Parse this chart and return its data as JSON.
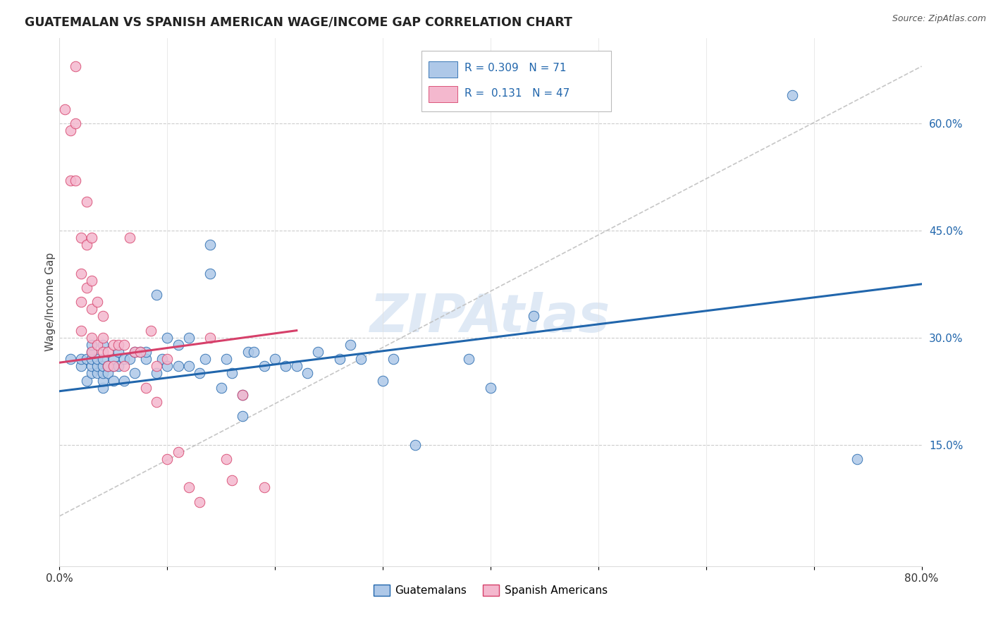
{
  "title": "GUATEMALAN VS SPANISH AMERICAN WAGE/INCOME GAP CORRELATION CHART",
  "source": "Source: ZipAtlas.com",
  "ylabel": "Wage/Income Gap",
  "xlim": [
    0.0,
    0.8
  ],
  "ylim": [
    -0.02,
    0.72
  ],
  "yticks_right": [
    0.15,
    0.3,
    0.45,
    0.6
  ],
  "ytick_right_labels": [
    "15.0%",
    "30.0%",
    "45.0%",
    "60.0%"
  ],
  "blue_color": "#aec8e8",
  "pink_color": "#f4b8ce",
  "blue_line_color": "#2166ac",
  "pink_line_color": "#d6406a",
  "blue_trend_x0": 0.0,
  "blue_trend_y0": 0.225,
  "blue_trend_x1": 0.8,
  "blue_trend_y1": 0.375,
  "pink_trend_x0": 0.0,
  "pink_trend_y0": 0.265,
  "pink_trend_x1": 0.22,
  "pink_trend_y1": 0.31,
  "ref_line_x0": 0.0,
  "ref_line_y0": 0.05,
  "ref_line_x1": 0.8,
  "ref_line_y1": 0.68,
  "watermark": "ZIPAtlas",
  "blue_x": [
    0.01,
    0.02,
    0.02,
    0.025,
    0.025,
    0.03,
    0.03,
    0.03,
    0.03,
    0.03,
    0.035,
    0.035,
    0.035,
    0.04,
    0.04,
    0.04,
    0.04,
    0.04,
    0.04,
    0.045,
    0.045,
    0.05,
    0.05,
    0.05,
    0.055,
    0.055,
    0.06,
    0.06,
    0.065,
    0.07,
    0.07,
    0.075,
    0.08,
    0.08,
    0.09,
    0.09,
    0.095,
    0.1,
    0.1,
    0.11,
    0.11,
    0.12,
    0.12,
    0.13,
    0.135,
    0.14,
    0.14,
    0.15,
    0.155,
    0.16,
    0.17,
    0.17,
    0.175,
    0.18,
    0.19,
    0.2,
    0.21,
    0.22,
    0.23,
    0.24,
    0.26,
    0.27,
    0.28,
    0.3,
    0.31,
    0.33,
    0.38,
    0.4,
    0.44,
    0.68,
    0.74
  ],
  "blue_y": [
    0.27,
    0.26,
    0.27,
    0.24,
    0.27,
    0.25,
    0.26,
    0.27,
    0.28,
    0.29,
    0.25,
    0.26,
    0.27,
    0.23,
    0.24,
    0.25,
    0.26,
    0.27,
    0.29,
    0.25,
    0.26,
    0.24,
    0.26,
    0.27,
    0.26,
    0.28,
    0.24,
    0.27,
    0.27,
    0.25,
    0.28,
    0.28,
    0.27,
    0.28,
    0.25,
    0.36,
    0.27,
    0.26,
    0.3,
    0.26,
    0.29,
    0.26,
    0.3,
    0.25,
    0.27,
    0.39,
    0.43,
    0.23,
    0.27,
    0.25,
    0.19,
    0.22,
    0.28,
    0.28,
    0.26,
    0.27,
    0.26,
    0.26,
    0.25,
    0.28,
    0.27,
    0.29,
    0.27,
    0.24,
    0.27,
    0.15,
    0.27,
    0.23,
    0.33,
    0.64,
    0.13
  ],
  "pink_x": [
    0.005,
    0.01,
    0.01,
    0.015,
    0.015,
    0.015,
    0.02,
    0.02,
    0.02,
    0.02,
    0.025,
    0.025,
    0.025,
    0.03,
    0.03,
    0.03,
    0.03,
    0.03,
    0.035,
    0.035,
    0.04,
    0.04,
    0.04,
    0.045,
    0.045,
    0.05,
    0.05,
    0.055,
    0.06,
    0.06,
    0.065,
    0.07,
    0.075,
    0.08,
    0.085,
    0.09,
    0.09,
    0.1,
    0.1,
    0.11,
    0.12,
    0.13,
    0.14,
    0.155,
    0.16,
    0.17,
    0.19
  ],
  "pink_y": [
    0.62,
    0.59,
    0.52,
    0.68,
    0.6,
    0.52,
    0.44,
    0.39,
    0.35,
    0.31,
    0.49,
    0.43,
    0.37,
    0.44,
    0.38,
    0.34,
    0.3,
    0.28,
    0.35,
    0.29,
    0.33,
    0.3,
    0.28,
    0.26,
    0.28,
    0.29,
    0.26,
    0.29,
    0.29,
    0.26,
    0.44,
    0.28,
    0.28,
    0.23,
    0.31,
    0.26,
    0.21,
    0.27,
    0.13,
    0.14,
    0.09,
    0.07,
    0.3,
    0.13,
    0.1,
    0.22,
    0.09
  ]
}
